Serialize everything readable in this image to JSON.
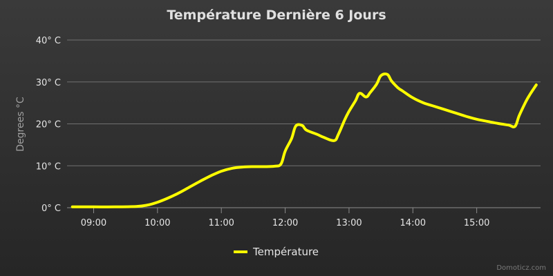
{
  "chart_data": {
    "type": "line",
    "title": "Température Dernière 6 Jours",
    "ylabel": "Degrees °C",
    "xlabel": "",
    "ylim": [
      0,
      40
    ],
    "yticks": [
      {
        "value": 0,
        "label": "0° C"
      },
      {
        "value": 10,
        "label": "10° C"
      },
      {
        "value": 20,
        "label": "20° C"
      },
      {
        "value": 30,
        "label": "30° C"
      },
      {
        "value": 40,
        "label": "40° C"
      }
    ],
    "xlim": [
      "08:35",
      "16:00"
    ],
    "xticks": [
      "09:00",
      "10:00",
      "11:00",
      "12:00",
      "13:00",
      "14:00",
      "15:00"
    ],
    "grid": true,
    "legend": "bottom-center",
    "series": [
      {
        "name": "Température",
        "color": "#ffff00",
        "points": [
          [
            "08:40",
            0.2
          ],
          [
            "09:00",
            0.2
          ],
          [
            "09:20",
            0.2
          ],
          [
            "09:40",
            0.3
          ],
          [
            "09:50",
            0.6
          ],
          [
            "10:00",
            1.3
          ],
          [
            "10:10",
            2.3
          ],
          [
            "10:20",
            3.5
          ],
          [
            "10:30",
            4.9
          ],
          [
            "10:40",
            6.3
          ],
          [
            "10:50",
            7.6
          ],
          [
            "11:00",
            8.7
          ],
          [
            "11:10",
            9.4
          ],
          [
            "11:20",
            9.7
          ],
          [
            "11:30",
            9.8
          ],
          [
            "11:40",
            9.8
          ],
          [
            "11:50",
            9.9
          ],
          [
            "11:56",
            10.4
          ],
          [
            "12:00",
            13.5
          ],
          [
            "12:06",
            16.5
          ],
          [
            "12:10",
            19.5
          ],
          [
            "12:16",
            19.6
          ],
          [
            "12:20",
            18.5
          ],
          [
            "12:30",
            17.5
          ],
          [
            "12:36",
            16.8
          ],
          [
            "12:46",
            16.0
          ],
          [
            "12:50",
            17.5
          ],
          [
            "12:56",
            21.0
          ],
          [
            "13:00",
            23.0
          ],
          [
            "13:06",
            25.5
          ],
          [
            "13:10",
            27.3
          ],
          [
            "13:16",
            26.4
          ],
          [
            "13:20",
            27.5
          ],
          [
            "13:26",
            29.5
          ],
          [
            "13:30",
            31.5
          ],
          [
            "13:36",
            31.8
          ],
          [
            "13:40",
            30.2
          ],
          [
            "13:46",
            28.6
          ],
          [
            "13:50",
            27.9
          ],
          [
            "14:00",
            26.2
          ],
          [
            "14:10",
            25.0
          ],
          [
            "14:20",
            24.2
          ],
          [
            "14:30",
            23.4
          ],
          [
            "14:40",
            22.6
          ],
          [
            "14:50",
            21.8
          ],
          [
            "15:00",
            21.1
          ],
          [
            "15:10",
            20.6
          ],
          [
            "15:20",
            20.1
          ],
          [
            "15:30",
            19.7
          ],
          [
            "15:36",
            19.4
          ],
          [
            "15:40",
            22.0
          ],
          [
            "15:46",
            25.2
          ],
          [
            "15:50",
            27.0
          ],
          [
            "15:56",
            29.3
          ]
        ]
      }
    ]
  },
  "credit": "Domoticz.com",
  "colors": {
    "grid": "#707070",
    "axis": "#8c8c8c"
  }
}
